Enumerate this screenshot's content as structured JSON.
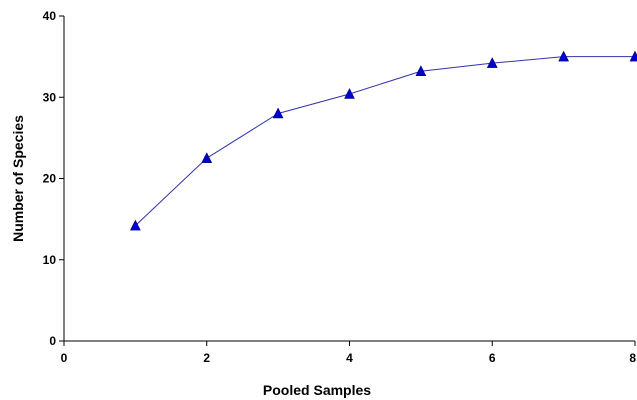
{
  "chart_data": {
    "type": "line",
    "title": "",
    "xlabel": "Pooled Samples",
    "ylabel": "Number of Species",
    "xlim": [
      0,
      8
    ],
    "ylim": [
      0,
      40
    ],
    "x_ticks": [
      0,
      2,
      4,
      6,
      8
    ],
    "y_ticks": [
      0,
      10,
      20,
      30,
      40
    ],
    "x_tick_labels": [
      "0",
      "2",
      "4",
      "6",
      "8"
    ],
    "y_tick_labels": [
      "0",
      "10",
      "20",
      "30",
      "40"
    ],
    "grid": false,
    "legend": "none",
    "series": [
      {
        "x": [
          1,
          2,
          3,
          4,
          5,
          6,
          7,
          8
        ],
        "values": [
          14.2,
          22.5,
          28.0,
          30.4,
          33.2,
          34.2,
          35.0,
          35.0
        ],
        "line_color": "#3333aa",
        "marker": "triangle",
        "marker_color": "#0000cc"
      }
    ]
  }
}
